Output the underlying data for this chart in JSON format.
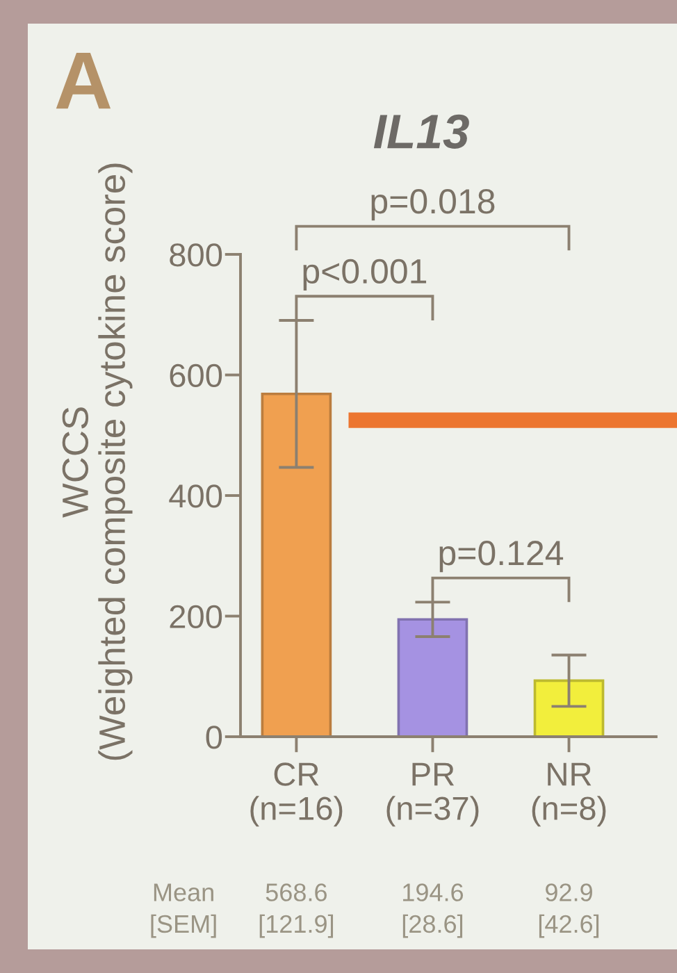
{
  "chart_data": {
    "type": "bar",
    "title": "IL13",
    "ylabel": "WCCS\n(Weighted composite cytokine score)",
    "categories": [
      "CR\n(n=16)",
      "PR\n(n=37)",
      "NR\n(n=8)"
    ],
    "values": [
      568.6,
      194.6,
      92.9
    ],
    "errors": [
      121.9,
      28.6,
      42.6
    ],
    "value_labels": [
      "568.6\n[121.9]",
      "194.6\n[28.6]",
      "92.9\n[42.6]"
    ],
    "colors": [
      "#f0a050",
      "#a592e2",
      "#f2ee3c"
    ],
    "ylim": [
      0,
      800
    ],
    "yticks": [
      0,
      200,
      400,
      600,
      800
    ],
    "ref_lines": [
      {
        "axis": "y",
        "value": 525,
        "color": "#ec7630"
      }
    ],
    "annotations": [
      "A",
      "p=0.018",
      "p<0.001",
      "p=0.124",
      "Mean\n[SEM]"
    ]
  }
}
